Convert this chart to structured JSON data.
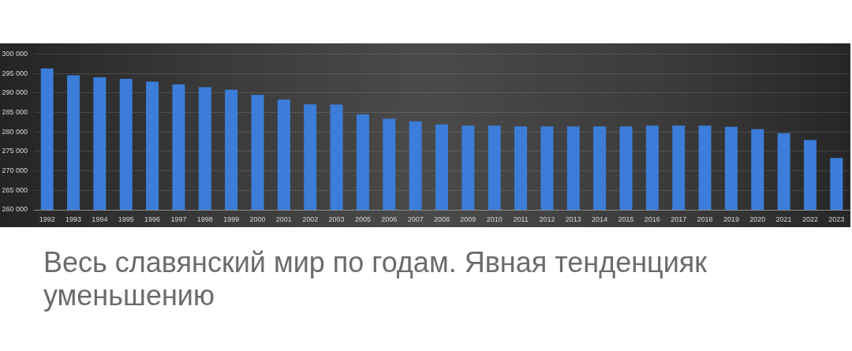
{
  "chart_data": {
    "type": "bar",
    "categories": [
      "1992",
      "1993",
      "1994",
      "1995",
      "1996",
      "1997",
      "1998",
      "1999",
      "2000",
      "2001",
      "2002",
      "2003",
      "2005",
      "2006",
      "2007",
      "2008",
      "2009",
      "2010",
      "2011",
      "2012",
      "2013",
      "2014",
      "2015",
      "2016",
      "2017",
      "2018",
      "2019",
      "2020",
      "2021",
      "2022",
      "2023"
    ],
    "values": [
      296300,
      294500,
      294000,
      293600,
      292900,
      292200,
      291500,
      290800,
      289500,
      288300,
      287100,
      287000,
      284500,
      283400,
      282700,
      281900,
      281600,
      281600,
      281400,
      281400,
      281400,
      281400,
      281400,
      281600,
      281600,
      281600,
      281300,
      280700,
      279700,
      277900,
      273300
    ],
    "color": "#3b7dd8",
    "ylim": [
      260000,
      300000
    ],
    "yticks": [
      {
        "value": 260000,
        "label": "260 000"
      },
      {
        "value": 265000,
        "label": "265 000"
      },
      {
        "value": 270000,
        "label": "270 000"
      },
      {
        "value": 275000,
        "label": "275 000"
      },
      {
        "value": 280000,
        "label": "280 000"
      },
      {
        "value": 285000,
        "label": "285 000"
      },
      {
        "value": 290000,
        "label": "290 000"
      },
      {
        "value": 295000,
        "label": "295 000"
      },
      {
        "value": 300000,
        "label": "300 000"
      }
    ],
    "grid": "y",
    "annotations": [
      "Весь славянский мир по годам. Явная тенденцияк уменьшению"
    ]
  }
}
